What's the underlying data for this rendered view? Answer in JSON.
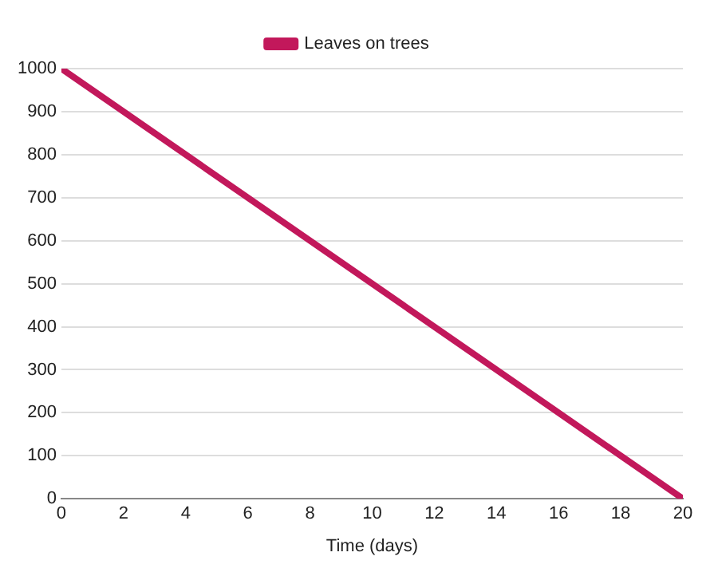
{
  "chart_data": {
    "type": "line",
    "xlabel": "Time (days)",
    "x": [
      0,
      20
    ],
    "series": [
      {
        "name": "Leaves on trees",
        "color": "#c2185b",
        "values": [
          1000,
          0
        ]
      }
    ],
    "xlim": [
      0,
      20
    ],
    "xticks": [
      0,
      2,
      4,
      6,
      8,
      10,
      12,
      14,
      16,
      18,
      20
    ],
    "ylim": [
      0,
      1000
    ],
    "yticks": [
      0,
      100,
      200,
      300,
      400,
      500,
      600,
      700,
      800,
      900,
      1000
    ],
    "grid": "y",
    "legend": "top",
    "marker": "none",
    "line_style": "solid"
  }
}
